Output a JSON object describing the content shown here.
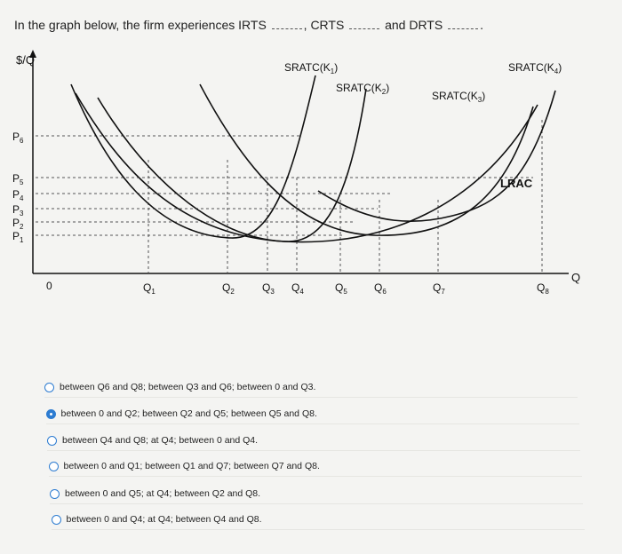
{
  "question": {
    "prefix": "In the graph below, the firm experiences IRTS",
    "mid1": ", CRTS",
    "mid2": "and DRTS",
    "end": "."
  },
  "graph": {
    "y_label": "$/Q",
    "x_label": "Q",
    "origin_label": "0",
    "curve_labels": {
      "k1": "SRATC(K1)",
      "k2": "SRATC(K2)",
      "k3": "SRATC(K3)",
      "k4": "SRATC(K4)",
      "lrac": "LRAC"
    },
    "price_labels": [
      "P6",
      "P5",
      "P4",
      "P3",
      "P2",
      "P1"
    ],
    "quantity_labels": [
      "Q1",
      "Q2",
      "Q3",
      "Q4",
      "Q5",
      "Q6",
      "Q7",
      "Q8"
    ]
  },
  "options": [
    {
      "text": "between Q6 and Q8; between Q3 and Q6; between 0 and Q3.",
      "selected": false
    },
    {
      "text": "between 0 and Q2; between Q2 and Q5; between Q5 and Q8.",
      "selected": true
    },
    {
      "text": "between Q4 and Q8; at Q4; between 0 and Q4.",
      "selected": false
    },
    {
      "text": "between 0 and Q1; between Q1 and Q7; between Q7 and Q8.",
      "selected": false
    },
    {
      "text": "between 0 and Q5; at Q4; between Q2 and Q8.",
      "selected": false
    },
    {
      "text": "between 0 and Q4; at Q4; between Q4 and Q8.",
      "selected": false
    }
  ],
  "colors": {
    "radio": "#2d7cd1",
    "curve": "#111111",
    "guide": "#555555"
  }
}
